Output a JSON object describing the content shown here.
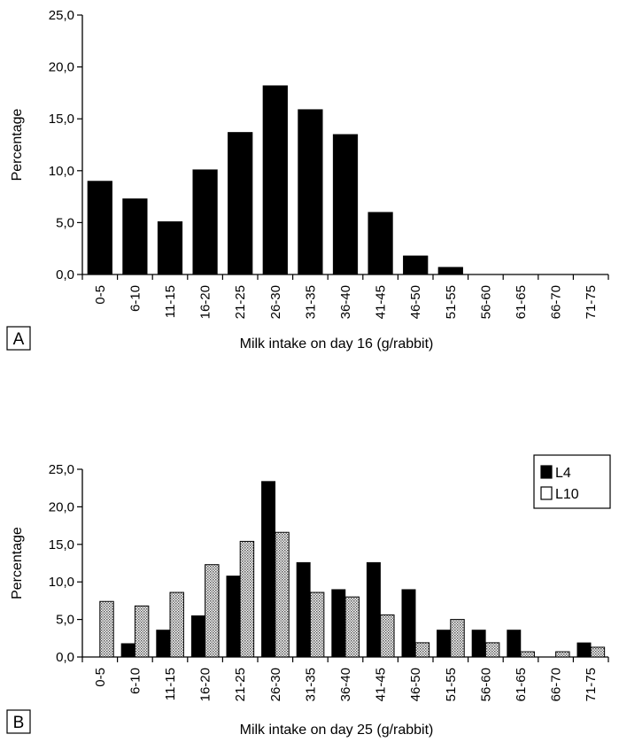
{
  "chart_data": [
    {
      "panel": "A",
      "type": "bar",
      "xlabel": "Milk intake on day 16 (g/rabbit)",
      "ylabel": "Percentage",
      "ylim": [
        0,
        25
      ],
      "yticks": [
        "0,0",
        "5,0",
        "10,0",
        "15,0",
        "20,0",
        "25,0"
      ],
      "categories": [
        "0-5",
        "6-10",
        "11-15",
        "16-20",
        "21-25",
        "26-30",
        "31-35",
        "36-40",
        "41-45",
        "46-50",
        "51-55",
        "56-60",
        "61-65",
        "66-70",
        "71-75"
      ],
      "series": [
        {
          "values": [
            9.0,
            7.3,
            5.1,
            10.1,
            13.7,
            18.2,
            15.9,
            13.5,
            6.0,
            1.8,
            0.7,
            0.0,
            0.0,
            0.0,
            0.0
          ],
          "color": "#000000"
        }
      ],
      "grid": false
    },
    {
      "panel": "B",
      "type": "bar",
      "xlabel": "Milk intake on day 25 (g/rabbit)",
      "ylabel": "Percentage",
      "ylim": [
        0,
        25
      ],
      "yticks": [
        "0,0",
        "5,0",
        "10,0",
        "15,0",
        "20,0",
        "25,0"
      ],
      "categories": [
        "0-5",
        "6-10",
        "11-15",
        "16-20",
        "21-25",
        "26-30",
        "31-35",
        "36-40",
        "41-45",
        "46-50",
        "51-55",
        "56-60",
        "61-65",
        "66-70",
        "71-75"
      ],
      "series": [
        {
          "name": "L4",
          "values": [
            0.0,
            1.8,
            3.6,
            5.5,
            10.8,
            23.4,
            12.6,
            9.0,
            12.6,
            9.0,
            3.6,
            3.6,
            3.6,
            0.0,
            1.9
          ],
          "color": "#000000"
        },
        {
          "name": "L10",
          "values": [
            7.4,
            6.8,
            8.6,
            12.3,
            15.4,
            16.6,
            8.6,
            8.0,
            5.6,
            1.9,
            5.0,
            1.9,
            0.7,
            0.7,
            1.3
          ],
          "color": "#ffffff"
        }
      ],
      "legend": "top-right",
      "grid": false
    }
  ]
}
